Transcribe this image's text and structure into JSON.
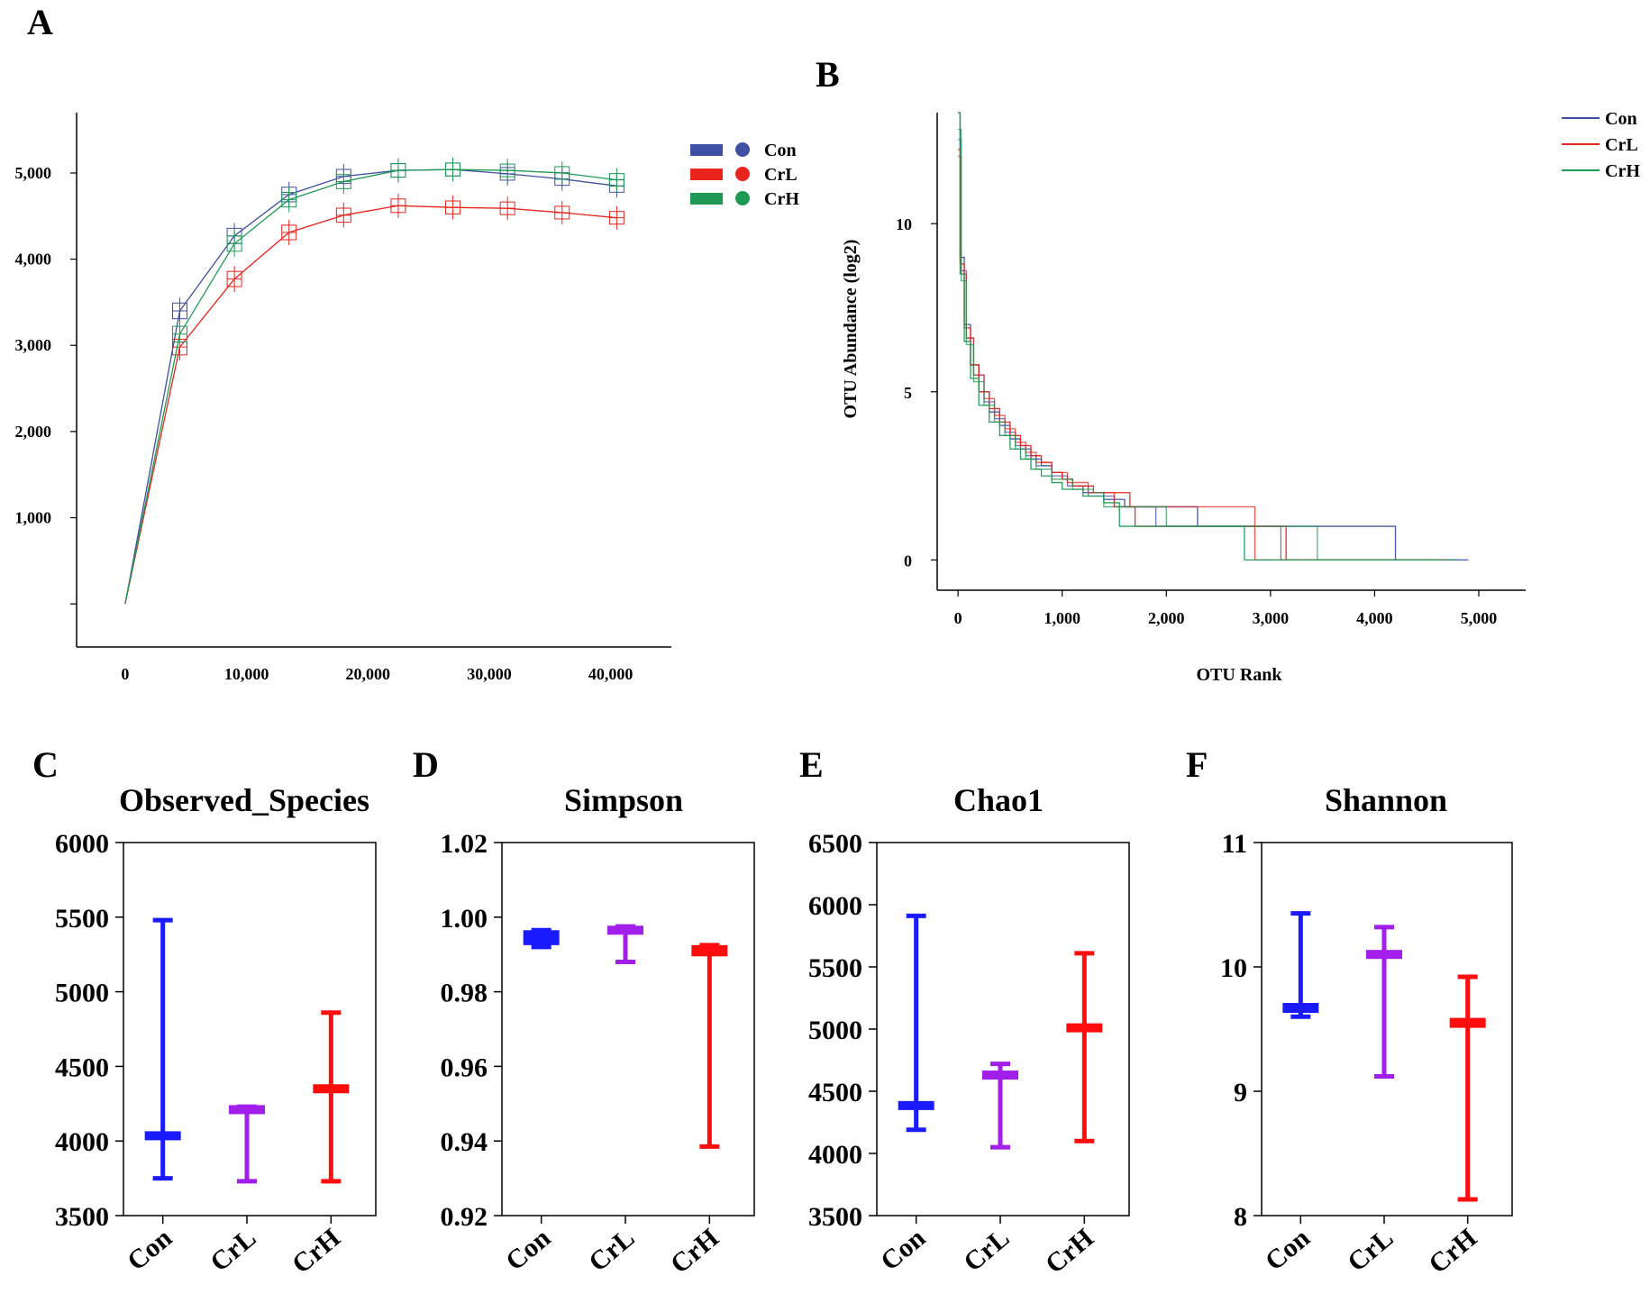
{
  "colors": {
    "Con": "#3f4fa3",
    "CrL": "#e8241c",
    "CrH": "#1e9a55",
    "box_Con": "#1a1aff",
    "box_CrL": "#a21eea",
    "box_CrH": "#ff0d0d"
  },
  "panels": {
    "A": "A",
    "B": "B",
    "C": "C",
    "D": "D",
    "E": "E",
    "F": "F"
  },
  "chart_data": [
    {
      "id": "A",
      "type": "line",
      "title": "",
      "xlabel": "",
      "ylabel": "",
      "xlim": [
        -4000,
        45000
      ],
      "ylim": [
        -500,
        5700
      ],
      "x_ticks": [
        0,
        10000,
        20000,
        30000,
        40000
      ],
      "x_tick_labels": [
        "0",
        "10,000",
        "20,000",
        "30,000",
        "40,000"
      ],
      "y_ticks": [
        0,
        1000,
        2000,
        3000,
        4000,
        5000
      ],
      "y_tick_labels": [
        "",
        "1,000",
        "2,000",
        "3,000",
        "4,000",
        "5,000"
      ],
      "x": [
        0,
        4500,
        9000,
        13500,
        18000,
        22500,
        27000,
        31500,
        36000,
        40500
      ],
      "series": [
        {
          "name": "Con",
          "values": [
            0,
            3400,
            4270,
            4750,
            4960,
            5030,
            5040,
            4990,
            4930,
            4850
          ]
        },
        {
          "name": "CrL",
          "values": [
            0,
            2980,
            3770,
            4310,
            4510,
            4620,
            4600,
            4590,
            4540,
            4480
          ]
        },
        {
          "name": "CrH",
          "values": [
            0,
            3130,
            4180,
            4690,
            4900,
            5030,
            5040,
            5030,
            5000,
            4920
          ]
        }
      ],
      "legend": [
        "Con",
        "CrL",
        "CrH"
      ],
      "legend_position": "top-right"
    },
    {
      "id": "B",
      "type": "line",
      "title": "",
      "xlabel": "OTU Rank",
      "ylabel": "OTU Abundance (log2)",
      "xlim": [
        -200,
        5450
      ],
      "ylim": [
        -0.9,
        13.3
      ],
      "x_ticks": [
        0,
        1000,
        2000,
        3000,
        4000,
        5000
      ],
      "x_tick_labels": [
        "0",
        "1,000",
        "2,000",
        "3,000",
        "4,000",
        "5,000"
      ],
      "y_ticks": [
        0,
        5,
        10
      ],
      "y_tick_labels": [
        "0",
        "5",
        "10"
      ],
      "series": [
        {
          "name": "Con",
          "samples": [
            {
              "x": [
                0,
                20,
                60,
                120,
                200,
                300,
                400,
                500,
                600,
                700,
                800,
                900,
                1000,
                1100,
                1200,
                1400,
                1600,
                1900,
                2300,
                2300,
                4200,
                4200,
                4900
              ],
              "y": [
                13.3,
                9,
                7,
                5.8,
                5,
                4.4,
                4.0,
                3.6,
                3.3,
                3.0,
                2.8,
                2.6,
                2.4,
                2.2,
                2.0,
                1.8,
                1.58,
                1.58,
                1.58,
                1,
                1,
                0,
                0
              ]
            },
            {
              "x": [
                0,
                30,
                80,
                150,
                250,
                350,
                450,
                550,
                650,
                750,
                900,
                1050,
                1250,
                1500,
                1750,
                1900,
                3050,
                3100,
                4800
              ],
              "y": [
                12.5,
                8.6,
                6.6,
                5.5,
                4.7,
                4.2,
                3.8,
                3.4,
                3.1,
                2.8,
                2.5,
                2.2,
                1.9,
                1.58,
                1.58,
                1,
                1,
                0,
                0
              ]
            }
          ]
        },
        {
          "name": "CrL",
          "samples": [
            {
              "x": [
                0,
                20,
                60,
                120,
                200,
                300,
                400,
                500,
                600,
                700,
                800,
                900,
                1000,
                1100,
                1300,
                1500,
                1650,
                1650,
                1700,
                1700,
                3150,
                3150,
                4700
              ],
              "y": [
                12.2,
                8.8,
                6.9,
                5.8,
                5.0,
                4.5,
                4.1,
                3.7,
                3.4,
                3.1,
                2.9,
                2.6,
                2.4,
                2.2,
                2.0,
                2.0,
                2.0,
                1.58,
                1.58,
                1,
                1,
                0,
                0
              ]
            },
            {
              "x": [
                0,
                30,
                80,
                150,
                250,
                350,
                450,
                550,
                650,
                750,
                900,
                1050,
                1250,
                1500,
                1650,
                2850,
                2850,
                4600
              ],
              "y": [
                12.0,
                8.5,
                6.6,
                5.5,
                4.8,
                4.3,
                3.9,
                3.5,
                3.2,
                2.9,
                2.6,
                2.3,
                2.0,
                1.58,
                1.58,
                1,
                0,
                0
              ]
            }
          ]
        },
        {
          "name": "CrH",
          "samples": [
            {
              "x": [
                0,
                20,
                60,
                120,
                200,
                300,
                400,
                500,
                600,
                700,
                800,
                900,
                1000,
                1200,
                1400,
                1550,
                1550,
                2750,
                2750,
                4600
              ],
              "y": [
                13.3,
                8.5,
                6.5,
                5.4,
                4.6,
                4.1,
                3.7,
                3.3,
                3.0,
                2.7,
                2.5,
                2.3,
                2.1,
                1.9,
                1.7,
                1.58,
                1,
                1,
                0,
                0
              ]
            },
            {
              "x": [
                0,
                30,
                80,
                150,
                250,
                350,
                450,
                550,
                650,
                750,
                900,
                1100,
                1300,
                1400,
                1900,
                2000,
                3450,
                3450,
                4800
              ],
              "y": [
                12.8,
                8.3,
                6.4,
                5.3,
                4.6,
                4.1,
                3.7,
                3.3,
                3.0,
                2.7,
                2.4,
                2.1,
                2.0,
                1.58,
                1.58,
                1,
                1,
                0,
                0
              ]
            }
          ]
        }
      ],
      "legend": [
        "Con",
        "CrL",
        "CrH"
      ],
      "legend_position": "top-right"
    },
    {
      "id": "C",
      "type": "box",
      "title": "Observed_Species",
      "categories": [
        "Con",
        "CrL",
        "CrH"
      ],
      "ylim": [
        3500,
        6000
      ],
      "y_ticks": [
        3500,
        4000,
        4500,
        5000,
        5500,
        6000
      ],
      "y_tick_labels": [
        "3500",
        "4000",
        "4500",
        "5000",
        "5500",
        "6000"
      ],
      "boxes": [
        {
          "name": "Con",
          "min": 3750,
          "q1": 4010,
          "median": 4030,
          "q3": 4060,
          "max": 5480
        },
        {
          "name": "CrL",
          "min": 3730,
          "q1": 4190,
          "median": 4210,
          "q3": 4230,
          "max": 4230
        },
        {
          "name": "CrH",
          "min": 3730,
          "q1": 4320,
          "median": 4350,
          "q3": 4380,
          "max": 4860
        }
      ]
    },
    {
      "id": "D",
      "type": "box",
      "title": "Simpson",
      "categories": [
        "Con",
        "CrL",
        "CrH"
      ],
      "ylim": [
        0.92,
        1.02
      ],
      "y_ticks": [
        0.92,
        0.94,
        0.96,
        0.98,
        1.0,
        1.02
      ],
      "y_tick_labels": [
        "0.92",
        "0.94",
        "0.96",
        "0.98",
        "1.00",
        "1.02"
      ],
      "boxes": [
        {
          "name": "Con",
          "min": 0.992,
          "q1": 0.9925,
          "median": 0.9945,
          "q3": 0.9965,
          "max": 0.9965
        },
        {
          "name": "CrL",
          "min": 0.988,
          "q1": 0.9955,
          "median": 0.9965,
          "q3": 0.9975,
          "max": 0.9975
        },
        {
          "name": "CrH",
          "min": 0.9385,
          "q1": 0.9895,
          "median": 0.9905,
          "q3": 0.9925,
          "max": 0.9925
        }
      ]
    },
    {
      "id": "E",
      "type": "box",
      "title": "Chao1",
      "categories": [
        "Con",
        "CrL",
        "CrH"
      ],
      "ylim": [
        3500,
        6500
      ],
      "y_ticks": [
        3500,
        4000,
        4500,
        5000,
        5500,
        6000,
        6500
      ],
      "y_tick_labels": [
        "3500",
        "4000",
        "4500",
        "5000",
        "5500",
        "6000",
        "6500"
      ],
      "boxes": [
        {
          "name": "Con",
          "min": 4190,
          "q1": 4350,
          "median": 4380,
          "q3": 4420,
          "max": 5910
        },
        {
          "name": "CrL",
          "min": 4050,
          "q1": 4600,
          "median": 4630,
          "q3": 4660,
          "max": 4720
        },
        {
          "name": "CrH",
          "min": 4100,
          "q1": 4980,
          "median": 5010,
          "q3": 5040,
          "max": 5610
        }
      ]
    },
    {
      "id": "F",
      "type": "box",
      "title": "Shannon",
      "categories": [
        "Con",
        "CrL",
        "CrH"
      ],
      "ylim": [
        8,
        11
      ],
      "y_ticks": [
        8,
        9,
        10,
        11
      ],
      "y_tick_labels": [
        "8",
        "9",
        "10",
        "11"
      ],
      "boxes": [
        {
          "name": "Con",
          "min": 9.6,
          "q1": 9.63,
          "median": 9.67,
          "q3": 9.71,
          "max": 10.43
        },
        {
          "name": "CrL",
          "min": 9.12,
          "q1": 10.07,
          "median": 10.1,
          "q3": 10.13,
          "max": 10.32
        },
        {
          "name": "CrH",
          "min": 8.13,
          "q1": 9.51,
          "median": 9.55,
          "q3": 9.59,
          "max": 9.92
        }
      ]
    }
  ]
}
